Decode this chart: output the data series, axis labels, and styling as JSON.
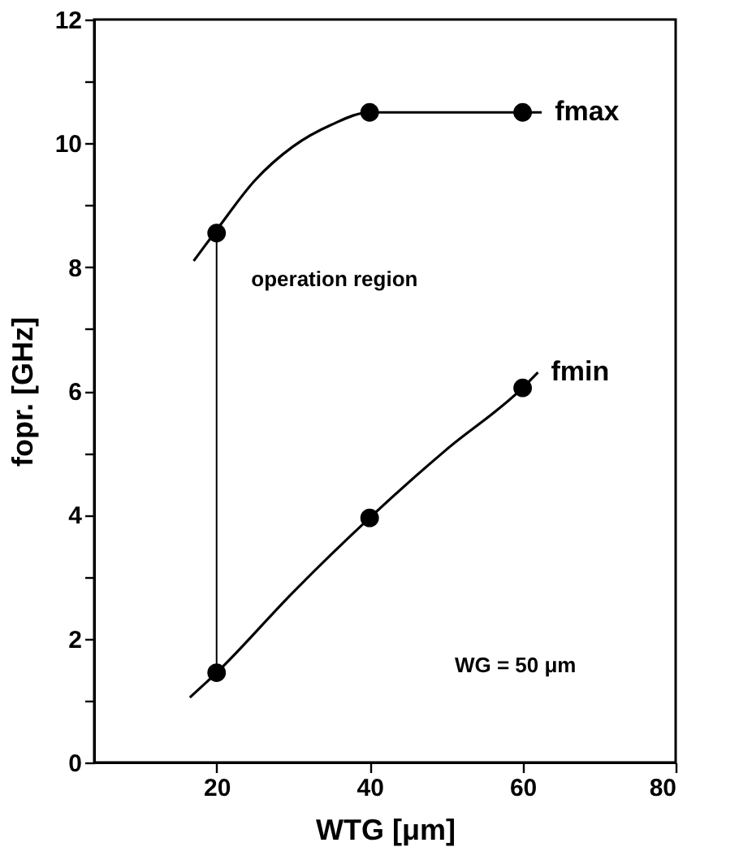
{
  "chart_data": {
    "type": "scatter",
    "xlabel": "WTG [μm]",
    "ylabel": "fopr. [GHz]",
    "xlim": [
      4,
      80
    ],
    "xticks": [
      20,
      40,
      60,
      80
    ],
    "ylim": [
      0,
      12
    ],
    "yticks": [
      0,
      {
        "value": 1,
        "label": null
      },
      2,
      {
        "value": 3,
        "label": null
      },
      4,
      {
        "value": 5,
        "label": null
      },
      6,
      {
        "value": 7,
        "label": null
      },
      8,
      {
        "value": 9,
        "label": null
      },
      10,
      {
        "value": 11,
        "label": null
      },
      12
    ],
    "grid": false,
    "legend": false,
    "marker": "circle",
    "series": [
      {
        "color": "#000000",
        "x": [
          20,
          40,
          60
        ],
        "values": [
          8.55,
          10.5,
          10.5
        ]
      },
      {
        "color": "#000000",
        "x": [
          20,
          40,
          60
        ],
        "values": [
          1.45,
          3.95,
          6.05
        ]
      },
      {
        "type": "line",
        "name": "fmax",
        "color": "#000000",
        "marker": "none",
        "x": [
          17,
          20,
          25,
          30,
          35,
          40,
          50,
          60,
          62.5
        ],
        "values": [
          8.1,
          8.6,
          9.4,
          9.95,
          10.3,
          10.5,
          10.5,
          10.5,
          10.5
        ]
      },
      {
        "type": "line",
        "name": "fmin",
        "color": "#000000",
        "marker": "none",
        "x": [
          16.5,
          20,
          30,
          40,
          50,
          60,
          62
        ],
        "values": [
          1.05,
          1.45,
          2.75,
          3.95,
          5.05,
          6.05,
          6.3
        ]
      }
    ],
    "annotations": [
      "operation region",
      "WG = 50 μm"
    ]
  }
}
